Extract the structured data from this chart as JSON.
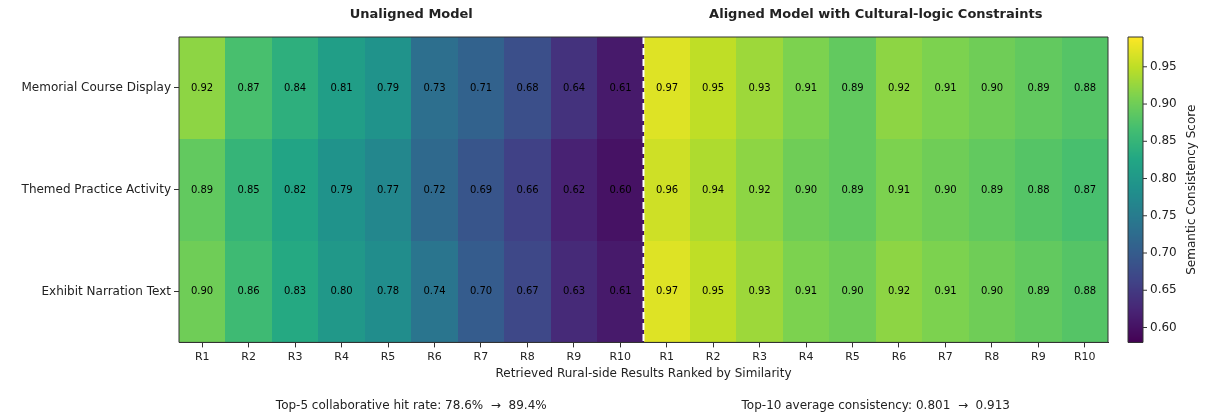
{
  "chart_data": {
    "type": "heatmap",
    "categories": [
      "R1",
      "R2",
      "R3",
      "R4",
      "R5",
      "R6",
      "R7",
      "R8",
      "R9",
      "R10",
      "R1",
      "R2",
      "R3",
      "R4",
      "R5",
      "R6",
      "R7",
      "R8",
      "R9",
      "R10"
    ],
    "y_categories": [
      "Memorial Course Display",
      "Themed Practice Activity",
      "Exhibit Narration Text"
    ],
    "cells": [
      [
        0.92,
        0.87,
        0.84,
        0.81,
        0.79,
        0.73,
        0.71,
        0.68,
        0.64,
        0.61,
        0.97,
        0.95,
        0.93,
        0.91,
        0.89,
        0.92,
        0.91,
        0.9,
        0.89,
        0.88
      ],
      [
        0.89,
        0.85,
        0.82,
        0.79,
        0.77,
        0.72,
        0.69,
        0.66,
        0.62,
        0.6,
        0.96,
        0.94,
        0.92,
        0.9,
        0.89,
        0.91,
        0.9,
        0.89,
        0.88,
        0.87
      ],
      [
        0.9,
        0.86,
        0.83,
        0.8,
        0.78,
        0.74,
        0.7,
        0.67,
        0.63,
        0.61,
        0.97,
        0.95,
        0.93,
        0.91,
        0.9,
        0.92,
        0.91,
        0.9,
        0.89,
        0.88
      ]
    ],
    "cell_labels": [
      [
        "0.92",
        "0.87",
        "0.84",
        "0.81",
        "0.79",
        "0.73",
        "0.71",
        "0.68",
        "0.64",
        "0.61",
        "0.97",
        "0.95",
        "0.93",
        "0.91",
        "0.89",
        "0.92",
        "0.91",
        "0.90",
        "0.89",
        "0.88"
      ],
      [
        "0.89",
        "0.85",
        "0.82",
        "0.79",
        "0.77",
        "0.72",
        "0.69",
        "0.66",
        "0.62",
        "0.60",
        "0.96",
        "0.94",
        "0.92",
        "0.90",
        "0.89",
        "0.91",
        "0.90",
        "0.89",
        "0.88",
        "0.87"
      ],
      [
        "0.90",
        "0.86",
        "0.83",
        "0.80",
        "0.78",
        "0.74",
        "0.70",
        "0.67",
        "0.63",
        "0.61",
        "0.97",
        "0.95",
        "0.93",
        "0.91",
        "0.90",
        "0.92",
        "0.91",
        "0.90",
        "0.89",
        "0.88"
      ]
    ],
    "clim": [
      0.58,
      0.99
    ],
    "cticks": [
      {
        "value": 0.6,
        "label": "0.60"
      },
      {
        "value": 0.65,
        "label": "0.65"
      },
      {
        "value": 0.7,
        "label": "0.70"
      },
      {
        "value": 0.75,
        "label": "0.75"
      },
      {
        "value": 0.8,
        "label": "0.80"
      },
      {
        "value": 0.85,
        "label": "0.85"
      },
      {
        "value": 0.9,
        "label": "0.90"
      },
      {
        "value": 0.95,
        "label": "0.95"
      }
    ],
    "clabel": "Semantic Consistency Score",
    "xlabel": "Retrieved Rural-side Results Ranked by Similarity",
    "annotations": [
      "Unaligned Model",
      "Aligned Model with Cultural-logic Constraints",
      "Top-5 collaborative hit rate: 78.6%  →  89.4%",
      "Top-10 average consistency: 0.801  →  0.913"
    ]
  }
}
